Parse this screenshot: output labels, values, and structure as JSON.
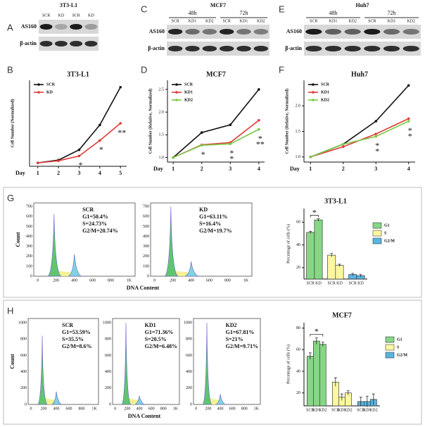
{
  "panel_labels": {
    "A": "A",
    "B": "B",
    "C": "C",
    "D": "D",
    "E": "E",
    "F": "F",
    "G": "G",
    "H": "H"
  },
  "blots": [
    {
      "title": "3T3-L1",
      "groups": [],
      "lanes": [
        "SCR",
        "KD",
        "SCR",
        "KD"
      ],
      "rows": [
        "AS160",
        "β-actin"
      ]
    },
    {
      "title": "MCF7",
      "groups": [
        "48h",
        "72h"
      ],
      "lanes": [
        "SCR",
        "KD1",
        "KD2",
        "SCR",
        "KD1",
        "KD2"
      ],
      "rows": [
        "AS160",
        "β-actin"
      ]
    },
    {
      "title": "Huh7",
      "groups": [
        "48h",
        "72h"
      ],
      "lanes": [
        "SCR",
        "KD1",
        "KD2",
        "SCR",
        "KD1",
        "KD2"
      ],
      "rows": [
        "AS160",
        "β-actin"
      ]
    }
  ],
  "chart_data": [
    {
      "type": "line",
      "title": "3T3-L1",
      "x_label": "Day",
      "y_label": "Cell Number (Normalized)",
      "x": [
        1,
        2,
        3,
        4,
        5
      ],
      "xlim": [
        0.6,
        5.3
      ],
      "xticks": [
        1,
        2,
        3,
        4,
        5
      ],
      "ylim": [
        0,
        25
      ],
      "series": [
        {
          "name": "SCR",
          "color": "#111111",
          "values": [
            1,
            1.8,
            4.8,
            12,
            23
          ]
        },
        {
          "name": "KD",
          "color": "#e03a3a",
          "values": [
            1,
            1.6,
            3,
            7.5,
            12.5
          ]
        }
      ],
      "annotations": [
        {
          "text": "*",
          "x": 3
        },
        {
          "text": "*",
          "x": 4
        },
        {
          "text": "**",
          "x": 5
        }
      ]
    },
    {
      "type": "line",
      "title": "MCF7",
      "x_label": "Day",
      "y_label": "Cell Number (Relative, Normalized)",
      "x": [
        1,
        2,
        3,
        4
      ],
      "xlim": [
        0.8,
        4.2
      ],
      "xticks": [
        1,
        2,
        3,
        4
      ],
      "ylim": [
        0.9,
        2.7
      ],
      "yticks": [
        {
          "value": 1,
          "label": "1.0"
        },
        1.5,
        {
          "value": 2,
          "label": "2.0"
        },
        2.5
      ],
      "series": [
        {
          "name": "SCR",
          "color": "#111111",
          "values": [
            1,
            1.55,
            1.72,
            2.5
          ]
        },
        {
          "name": "KD1",
          "color": "#e03a3a",
          "values": [
            1,
            1.28,
            1.33,
            1.82
          ]
        },
        {
          "name": "KD2",
          "color": "#7ac943",
          "values": [
            1,
            1.27,
            1.3,
            1.62
          ]
        }
      ],
      "annotations": [
        {
          "text": "*",
          "x": 2
        },
        {
          "text": "*",
          "x": 3
        },
        {
          "text": "*",
          "x": 3
        },
        {
          "text": "*",
          "x": 4
        },
        {
          "text": "**",
          "x": 4
        }
      ]
    },
    {
      "type": "line",
      "title": "Huh7",
      "x_label": "Day",
      "y_label": "Cell Number (Relative, Normalized)",
      "x": [
        1,
        2,
        3,
        4
      ],
      "xlim": [
        0.8,
        4.2
      ],
      "xticks": [
        1,
        2,
        3,
        4
      ],
      "ylim": [
        0.9,
        2.5
      ],
      "yticks": [
        {
          "value": 1,
          "label": "1.0"
        },
        1.5,
        {
          "value": 2,
          "label": "2.0"
        }
      ],
      "series": [
        {
          "name": "SCR",
          "color": "#111111",
          "values": [
            1,
            1.25,
            1.7,
            2.4
          ]
        },
        {
          "name": "KD1",
          "color": "#e03a3a",
          "values": [
            1,
            1.2,
            1.45,
            1.75
          ]
        },
        {
          "name": "KD2",
          "color": "#7ac943",
          "values": [
            1,
            1.25,
            1.4,
            1.7
          ]
        }
      ],
      "annotations": [
        {
          "text": "*",
          "x": 3
        },
        {
          "text": "*",
          "x": 3
        },
        {
          "text": "*",
          "x": 4
        },
        {
          "text": "*",
          "x": 4
        }
      ]
    },
    {
      "type": "bar",
      "title": "3T3-L1",
      "y_label": "Percentage of cells (%)",
      "categories": [
        "SCR",
        "KD"
      ],
      "ylim": [
        10,
        72
      ],
      "yticks": [
        20,
        40,
        60
      ],
      "series": [
        {
          "name": "G1",
          "color": "#86d686",
          "values": [
            51,
            62
          ],
          "errors": [
            1,
            1
          ]
        },
        {
          "name": "S",
          "color": "#fdf8a0",
          "values": [
            31,
            22
          ],
          "errors": [
            1.5,
            1
          ]
        },
        {
          "name": "G2/M",
          "color": "#5ab4e0",
          "values": [
            14,
            13
          ],
          "errors": [
            1,
            1
          ]
        }
      ],
      "annotations": [
        {
          "text": "*"
        }
      ]
    },
    {
      "type": "bar",
      "title": "MCF7",
      "y_label": "Percentage of cells (%)",
      "categories": [
        "SCR",
        "KD1",
        "KD2"
      ],
      "ylim": [
        8,
        85
      ],
      "yticks": [
        20,
        40,
        60,
        80
      ],
      "series": [
        {
          "name": "G1",
          "color": "#86d686",
          "values": [
            54,
            68,
            65
          ],
          "errors": [
            3,
            3,
            2
          ]
        },
        {
          "name": "S",
          "color": "#fdf8a0",
          "values": [
            30,
            16,
            20
          ],
          "errors": [
            4,
            3,
            2
          ]
        },
        {
          "name": "G2/M",
          "color": "#5ab4e0",
          "values": [
            12,
            12,
            14
          ],
          "errors": [
            4,
            5,
            5
          ]
        }
      ],
      "annotations": [
        {
          "text": "*"
        }
      ]
    }
  ],
  "flow": [
    {
      "title": "3T3-L1",
      "y_label": "Count",
      "x_label": "DNA Content",
      "x_tick_labels": [
        "0",
        "200",
        "400",
        "600",
        "800",
        "1K"
      ],
      "y_tick_labels": [
        "0",
        "100",
        "200",
        "300",
        "400",
        "500",
        "600",
        "700"
      ],
      "samples": [
        {
          "name": "SCR",
          "stats": [
            "G1=50.4%",
            "S=24.73%",
            "G2/M=20.74%"
          ]
        },
        {
          "name": "KD",
          "stats": [
            "G1=63.11%",
            "S=16.4%",
            "G2/M=19.7%"
          ]
        }
      ]
    },
    {
      "title": "MCF7",
      "y_label": "Count",
      "x_label": "DNA Content",
      "x_tick_labels": [
        "0",
        "200",
        "400",
        "600",
        "800",
        "1K"
      ],
      "y_tick_labels": [
        "0",
        "200",
        "400",
        "600",
        "800",
        "1000"
      ],
      "samples": [
        {
          "name": "SCR",
          "stats": [
            "G1=53.59%",
            "S=35.5%",
            "G2/M=8.6%"
          ]
        },
        {
          "name": "KD1",
          "stats": [
            "G1=71.36%",
            "S=20.5%",
            "G2/M=6.48%"
          ]
        },
        {
          "name": "KD2",
          "stats": [
            "G1=67.81%",
            "S=21%",
            "G2/M=9.71%"
          ]
        }
      ]
    }
  ]
}
